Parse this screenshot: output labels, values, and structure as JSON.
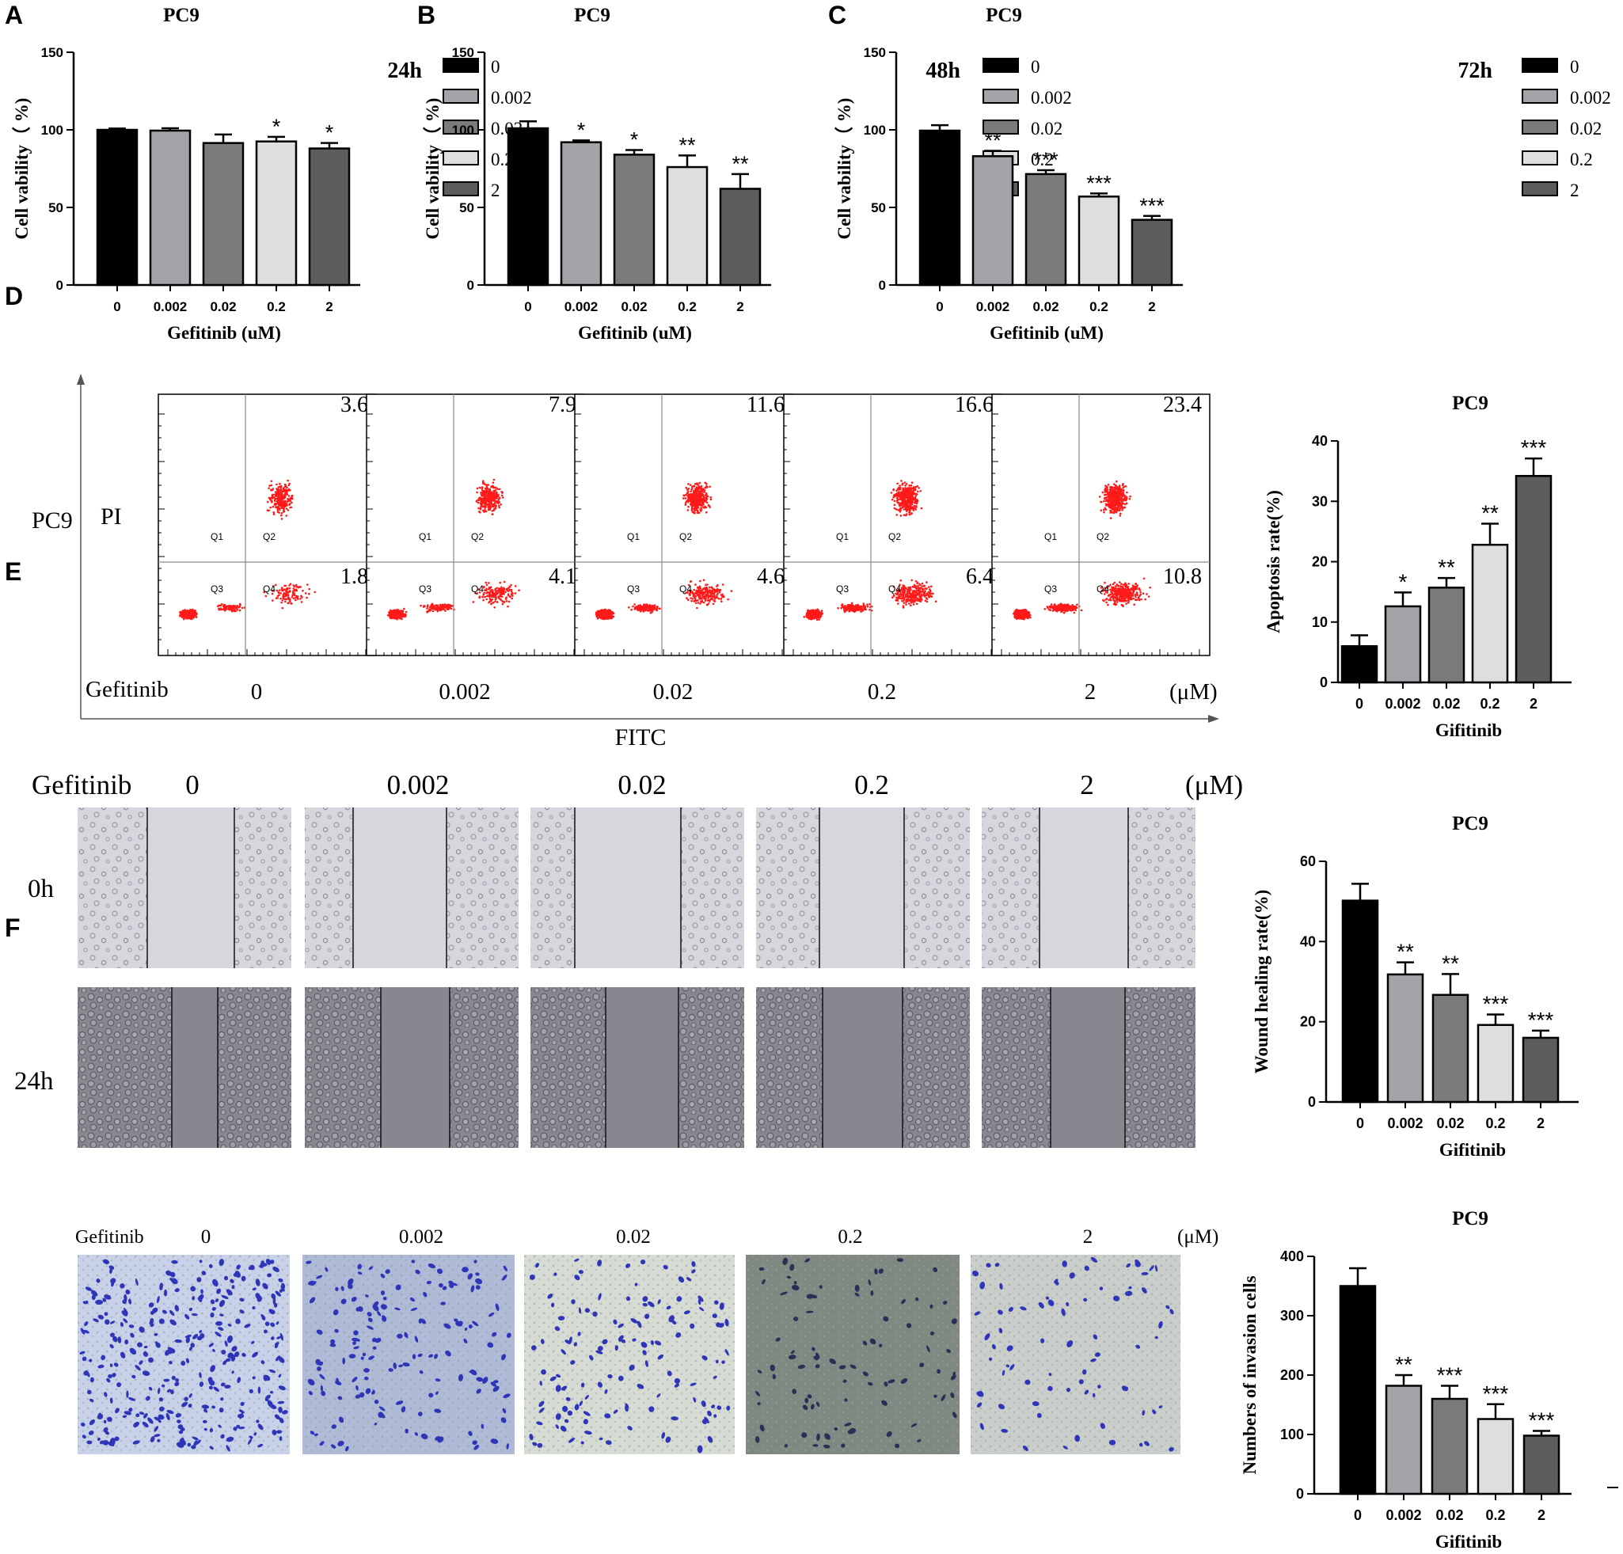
{
  "colors": {
    "bar_fills": [
      "#000000",
      "#a3a3a8",
      "#7b7b7b",
      "#dedede",
      "#5d5d5d"
    ],
    "scatter": "#ff1a1a",
    "gate_line": "#8a8a8a",
    "wound_0h_bg": "#d8d6dc",
    "wound_24h_bg": "#8a8690",
    "invasion_stain": "#2f35b8"
  },
  "panel_labels": [
    "A",
    "B",
    "C",
    "D",
    "E",
    "F"
  ],
  "chart_data": [
    {
      "panel": "A",
      "type": "bar",
      "title": "PC9",
      "timepoint": "24h",
      "categories": [
        "0",
        "0.002",
        "0.02",
        "0.2",
        "2"
      ],
      "values": [
        100,
        99.5,
        91.5,
        92.5,
        88
      ],
      "errors": [
        0.8,
        1.5,
        5.5,
        3,
        3.5
      ],
      "significance": [
        "",
        "",
        "",
        "*",
        "*"
      ],
      "legend": [
        "0",
        "0.002",
        "0.02",
        "0.2",
        "2"
      ],
      "xlabel": "Gefitinib (uM)",
      "ylabel": "Cell vability（ %)",
      "ylim": [
        0,
        150
      ],
      "yticks": [
        0,
        50,
        100,
        150
      ]
    },
    {
      "panel": "B",
      "type": "bar",
      "title": "PC9",
      "timepoint": "48h",
      "categories": [
        "0",
        "0.002",
        "0.02",
        "0.2",
        "2"
      ],
      "values": [
        101,
        92,
        84,
        76,
        62
      ],
      "errors": [
        4.5,
        1.2,
        3,
        7.5,
        9.5
      ],
      "significance": [
        "",
        "*",
        "*",
        "**",
        "**"
      ],
      "legend": [
        "0",
        "0.002",
        "0.02",
        "0.2",
        "2"
      ],
      "xlabel": "Gefitinib (uM)",
      "ylabel": "Cell vability（ %)",
      "ylim": [
        0,
        150
      ],
      "yticks": [
        0,
        50,
        100,
        150
      ]
    },
    {
      "panel": "C",
      "type": "bar",
      "title": "PC9",
      "timepoint": "72h",
      "categories": [
        "0",
        "0.002",
        "0.02",
        "0.2",
        "2"
      ],
      "values": [
        99.5,
        83,
        71.5,
        57,
        42
      ],
      "errors": [
        3.5,
        3.5,
        2.5,
        2,
        2.5
      ],
      "significance": [
        "",
        "**",
        "***",
        "***",
        "***"
      ],
      "legend": [
        "0",
        "0.002",
        "0.02",
        "0.2",
        "2"
      ],
      "xlabel": "Gefitinib (uM)",
      "ylabel": "Cell vability（ %)",
      "ylim": [
        0,
        150
      ],
      "yticks": [
        0,
        50,
        100,
        150
      ]
    },
    {
      "panel": "D",
      "type": "bar",
      "title": "PC9",
      "categories": [
        "0",
        "0.002",
        "0.02",
        "0.2",
        "2"
      ],
      "values": [
        6,
        12.6,
        15.7,
        22.8,
        34.2
      ],
      "errors": [
        1.8,
        2.3,
        1.6,
        3.5,
        2.9
      ],
      "significance": [
        "",
        "*",
        "**",
        "**",
        "***"
      ],
      "xlabel": "Gifitinib",
      "ylabel": "Apoptosis rate(%)",
      "ylim": [
        0,
        40
      ],
      "yticks": [
        0,
        10,
        20,
        30,
        40
      ]
    },
    {
      "panel": "E",
      "type": "bar",
      "title": "PC9",
      "categories": [
        "0",
        "0.002",
        "0.02",
        "0.2",
        "2"
      ],
      "values": [
        50.2,
        31.8,
        26.7,
        19.2,
        16
      ],
      "errors": [
        4.2,
        3,
        5.2,
        2.6,
        1.8
      ],
      "significance": [
        "",
        "**",
        "**",
        "***",
        "***"
      ],
      "xlabel": "Gifitinib",
      "ylabel": "Wound healing rate(%)",
      "ylim": [
        0,
        60
      ],
      "yticks": [
        0,
        20,
        40,
        60
      ]
    },
    {
      "panel": "F",
      "type": "bar",
      "title": "PC9",
      "categories": [
        "0",
        "0.002",
        "0.02",
        "0.2",
        "2"
      ],
      "values": [
        350,
        182,
        160,
        126,
        98
      ],
      "errors": [
        30,
        18,
        22,
        25,
        8
      ],
      "significance": [
        "",
        "**",
        "***",
        "***",
        "***"
      ],
      "xlabel": "Gifitinib",
      "ylabel": "Numbers of invasion cells",
      "ylim": [
        0,
        400
      ],
      "yticks": [
        0,
        100,
        200,
        300,
        400
      ]
    }
  ],
  "flow": {
    "row_label": "PC9",
    "y_axis_label": "PI",
    "x_axis_label": "FITC",
    "treatment_label": "Gefitinib",
    "unit": "(μM)",
    "quadrant_names": [
      "Q1",
      "Q2",
      "Q3",
      "Q4"
    ],
    "plots": [
      {
        "dose": "0",
        "q2": "3.6",
        "q4": "1.8"
      },
      {
        "dose": "0.002",
        "q2": "7.9",
        "q4": "4.1"
      },
      {
        "dose": "0.02",
        "q2": "11.6",
        "q4": "4.6"
      },
      {
        "dose": "0.2",
        "q2": "16.6",
        "q4": "6.4"
      },
      {
        "dose": "2",
        "q2": "23.4",
        "q4": "10.8"
      }
    ]
  },
  "wound": {
    "treatment_label": "Gefitinib",
    "unit": "(μM)",
    "doses": [
      "0",
      "0.002",
      "0.02",
      "0.2",
      "2"
    ],
    "time_labels": [
      "0h",
      "24h"
    ]
  },
  "invasion": {
    "treatment_label": "Gefitinib",
    "unit": "(μM)",
    "doses": [
      "0",
      "0.002",
      "0.02",
      "0.2",
      "2"
    ]
  }
}
